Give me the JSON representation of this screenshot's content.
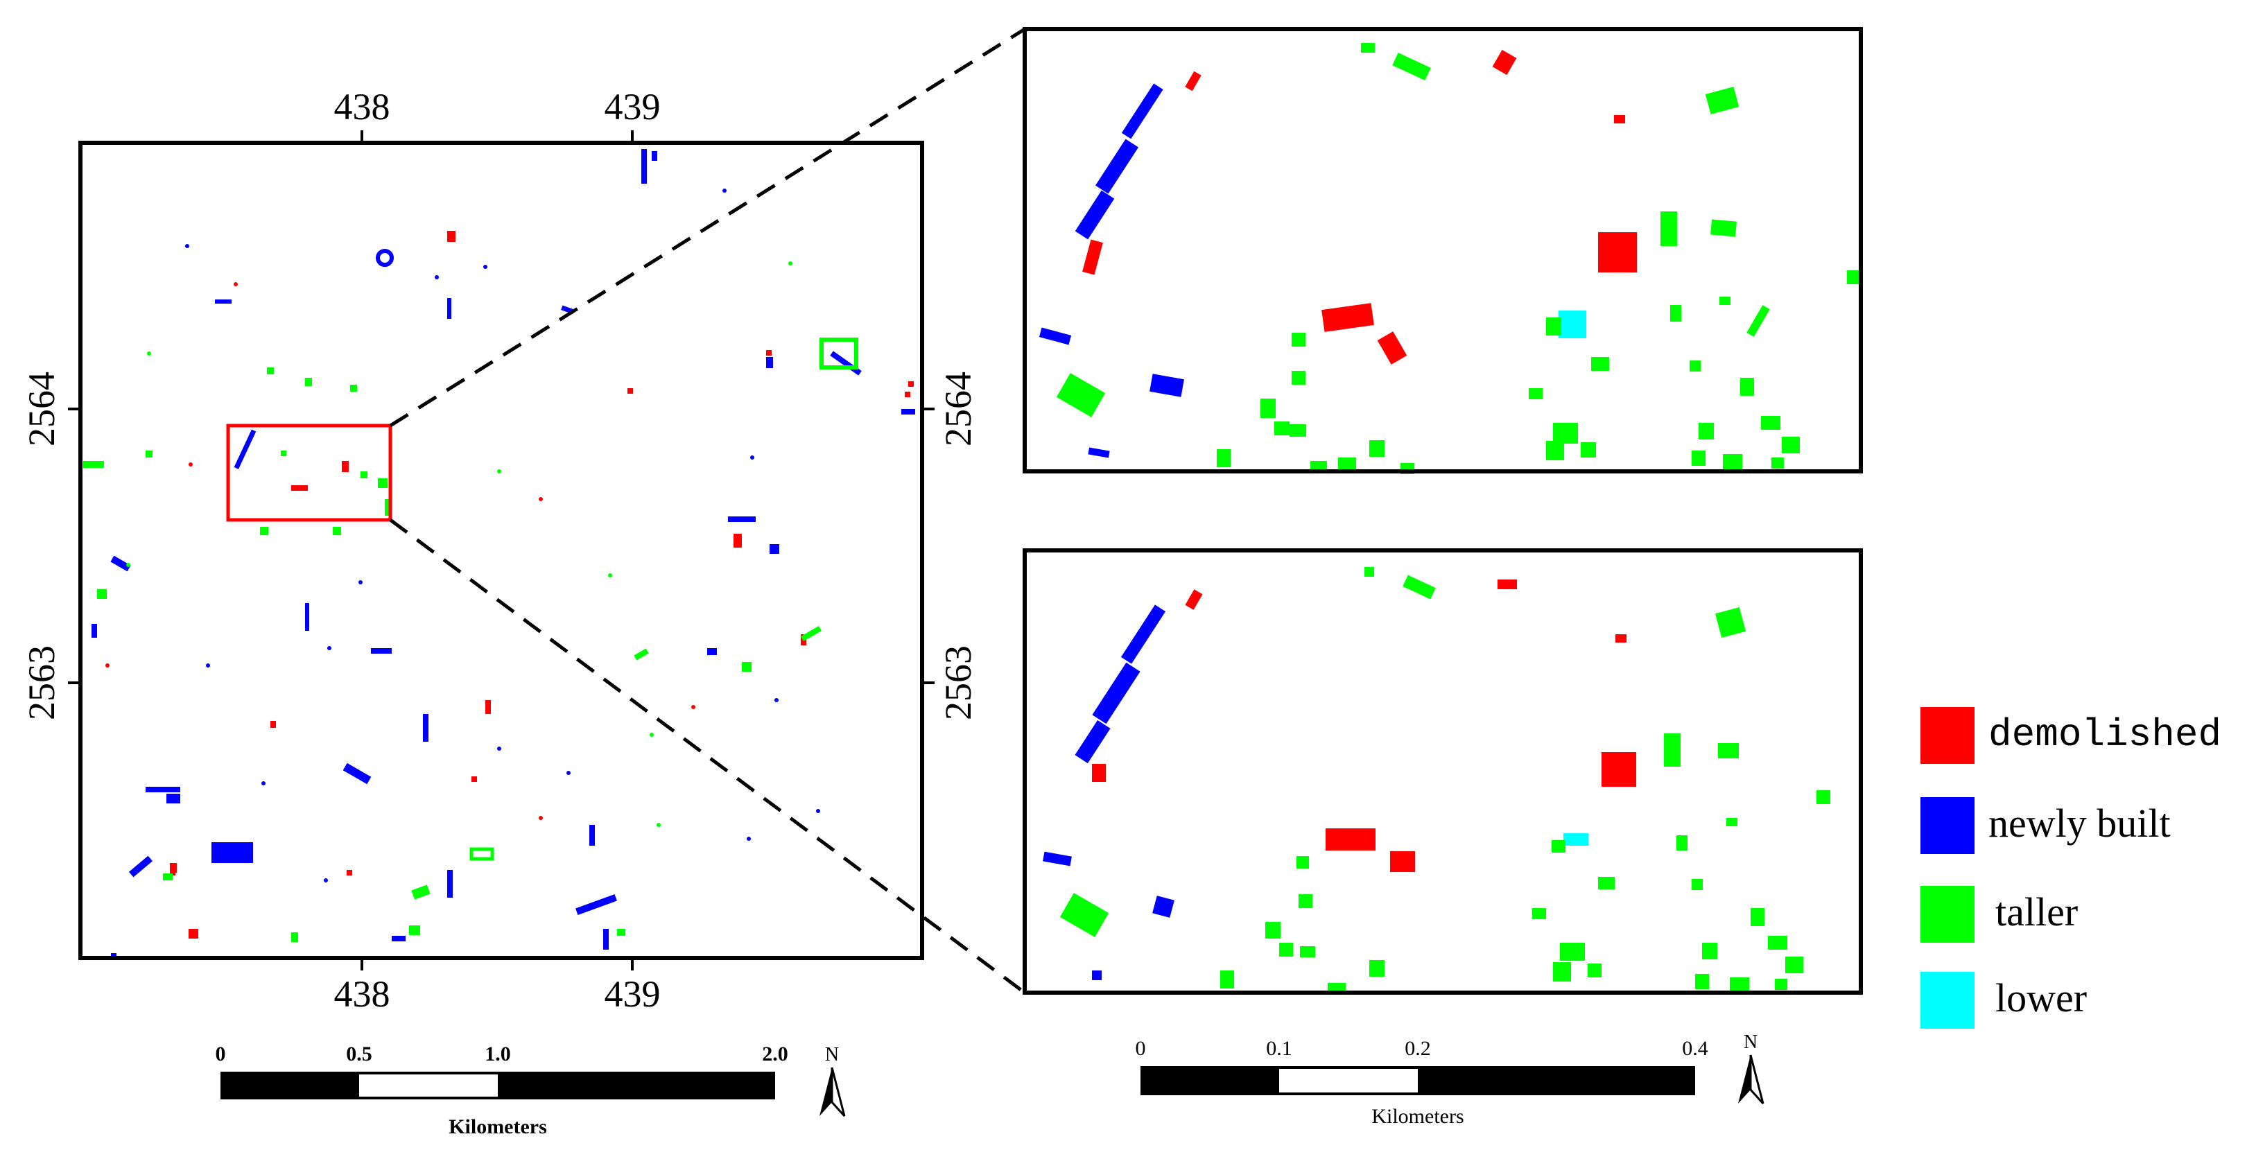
{
  "colors": {
    "demolished": "#ff0000",
    "newly_built": "#0000ff",
    "taller": "#00ff00",
    "lower": "#00ffff",
    "frame": "#000000",
    "highlight_box": "#ff0000"
  },
  "overview_map": {
    "top_ticks": [
      "438",
      "439"
    ],
    "bottom_ticks": [
      "438",
      "439"
    ],
    "left_ticks": [
      "2564",
      "2563"
    ],
    "right_ticks": [
      "2564",
      "2563"
    ]
  },
  "scale_bar_left": {
    "labels": [
      "0",
      "0.5",
      "1.0",
      "2.0"
    ],
    "unit": "Kilometers",
    "north": "N"
  },
  "scale_bar_right": {
    "labels": [
      "0",
      "0.1",
      "0.2",
      "0.4"
    ],
    "unit": "Kilometers",
    "north": "N"
  },
  "legend": [
    {
      "key": "demolished",
      "label": "demolished"
    },
    {
      "key": "newly_built",
      "label": "newly built"
    },
    {
      "key": "taller",
      "label": "taller"
    },
    {
      "key": "lower",
      "label": "lower"
    }
  ],
  "icons": {
    "north_arrow": "north-arrow-icon"
  }
}
